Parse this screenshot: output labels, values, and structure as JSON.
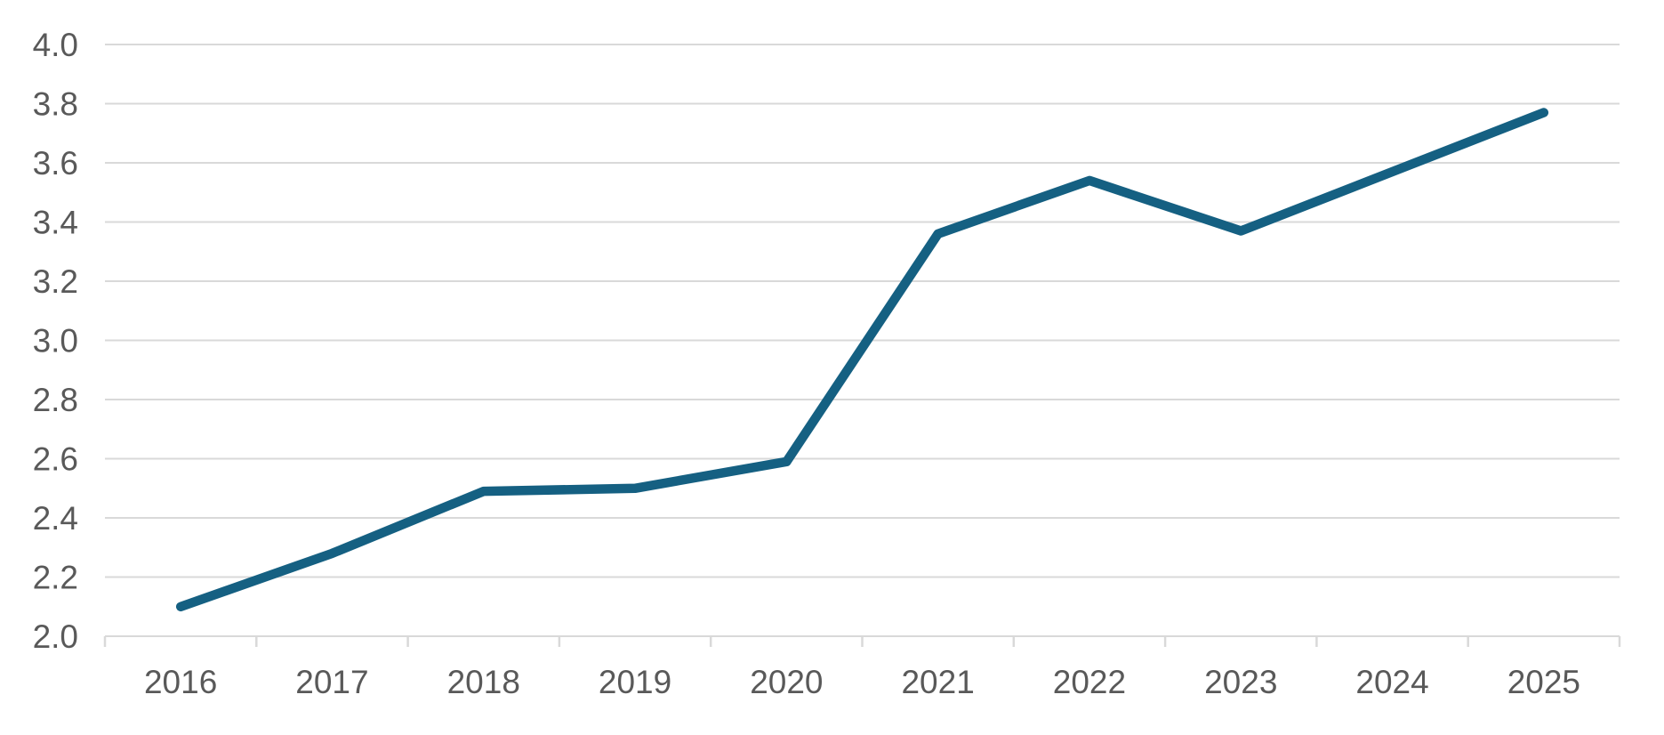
{
  "chart_data": {
    "type": "line",
    "categories": [
      "2016",
      "2017",
      "2018",
      "2019",
      "2020",
      "2021",
      "2022",
      "2023",
      "2024",
      "2025"
    ],
    "values": [
      2.1,
      2.28,
      2.49,
      2.5,
      2.59,
      3.36,
      3.54,
      3.37,
      3.57,
      3.77
    ],
    "title": "",
    "xlabel": "",
    "ylabel": "",
    "ylim": [
      2.0,
      4.0
    ],
    "ytick_step": 0.2,
    "ytick_labels": [
      "2.0",
      "2.2",
      "2.4",
      "2.6",
      "2.8",
      "3.0",
      "3.2",
      "3.4",
      "3.6",
      "3.8",
      "4.0"
    ],
    "grid": "horizontal",
    "legend": "none",
    "style": {
      "line_color": "#156082",
      "line_width": 10.5,
      "gridline_color": "#d9d9d9",
      "axis_color": "#d9d9d9",
      "tick_color": "#d9d9d9",
      "label_color": "#595959",
      "background_color": "#ffffff",
      "label_font_size": 37
    }
  }
}
